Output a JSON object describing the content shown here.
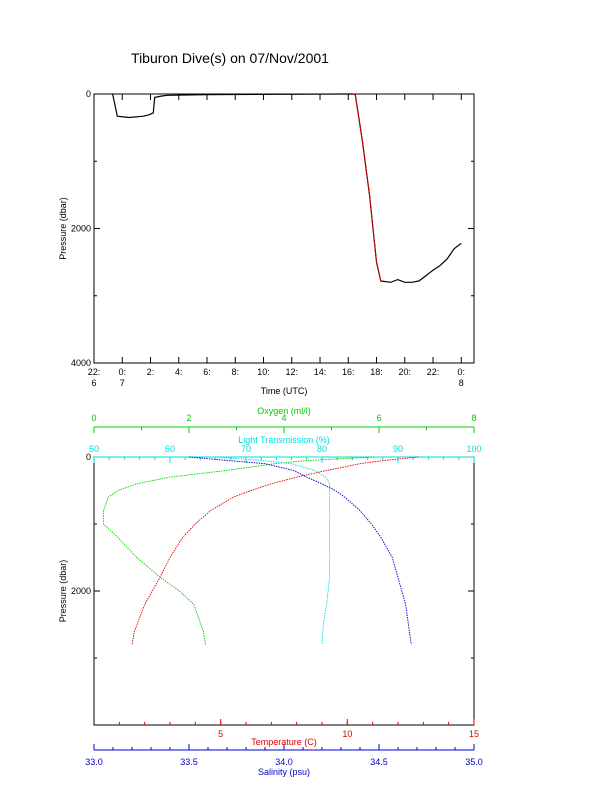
{
  "title": "Tiburon Dive(s) on 07/Nov/2001",
  "colors": {
    "axis": "#000000",
    "temperature": "#dd0000",
    "oxygen": "#00cc00",
    "transmission": "#00dddd",
    "salinity": "#0000cc",
    "dive_track": "#000000",
    "dive_track_highlight": "#cc0000"
  },
  "chart_data": [
    {
      "type": "line",
      "name": "dive-depth-time",
      "xlabel": "Time (UTC)",
      "ylabel": "Pressure (dbar)",
      "xlim": [
        22,
        48.9
      ],
      "ylim": [
        4000,
        0
      ],
      "x_ticks": [
        {
          "x": 22,
          "label": "22:",
          "sub": "6"
        },
        {
          "x": 24,
          "label": "0:",
          "sub": "7"
        },
        {
          "x": 26,
          "label": "2:",
          "sub": ""
        },
        {
          "x": 28,
          "label": "4:",
          "sub": ""
        },
        {
          "x": 30,
          "label": "6:",
          "sub": ""
        },
        {
          "x": 32,
          "label": "8:",
          "sub": ""
        },
        {
          "x": 34,
          "label": "10:",
          "sub": ""
        },
        {
          "x": 36,
          "label": "12:",
          "sub": ""
        },
        {
          "x": 38,
          "label": "14:",
          "sub": ""
        },
        {
          "x": 40,
          "label": "16:",
          "sub": ""
        },
        {
          "x": 42,
          "label": "18:",
          "sub": ""
        },
        {
          "x": 44,
          "label": "20:",
          "sub": ""
        },
        {
          "x": 46,
          "label": "22:",
          "sub": ""
        },
        {
          "x": 48,
          "label": "0:",
          "sub": "8"
        }
      ],
      "y_ticks": [
        0,
        2000,
        4000
      ],
      "x": [
        23.3,
        23.32,
        23.6,
        23.65,
        24.5,
        25.5,
        25.9,
        26.2,
        26.3,
        26.8,
        27.2,
        30,
        35,
        40,
        40.3,
        40.5,
        41,
        41.5,
        41.8,
        42,
        42.3,
        43,
        43.5,
        44,
        44.5,
        45,
        45.5,
        46,
        46.5,
        47,
        47.5,
        48
      ],
      "y": [
        0,
        0,
        280,
        330,
        350,
        330,
        310,
        280,
        50,
        30,
        20,
        10,
        5,
        0,
        0,
        10,
        700,
        1500,
        2100,
        2500,
        2780,
        2800,
        2760,
        2800,
        2800,
        2780,
        2700,
        2620,
        2550,
        2450,
        2300,
        2220
      ]
    },
    {
      "type": "line",
      "name": "vertical-profiles",
      "ylabel": "Pressure (dbar)",
      "ylim": [
        4000,
        0
      ],
      "y_ticks": [
        0,
        2000
      ],
      "axes": {
        "oxygen": {
          "label": "Oxygen (ml/l)",
          "range": [
            0,
            8
          ],
          "ticks": [
            0,
            2,
            4,
            6,
            8
          ]
        },
        "transmission": {
          "label": "Light Transmission (%)",
          "range": [
            50,
            100
          ],
          "ticks": [
            50,
            60,
            70,
            80,
            90,
            100
          ]
        },
        "temperature": {
          "label": "Temperature (C)",
          "range": [
            0,
            15
          ],
          "ticks": [
            5,
            10,
            15
          ]
        },
        "salinity": {
          "label": "Salinity (psu)",
          "range": [
            33,
            35
          ],
          "ticks": [
            "33.0",
            "33.5",
            "34.0",
            "34.5",
            "35.0"
          ]
        }
      },
      "pressure": [
        0,
        50,
        100,
        200,
        300,
        400,
        500,
        600,
        800,
        1000,
        1200,
        1500,
        1800,
        2000,
        2200,
        2400,
        2600,
        2800
      ],
      "series": [
        {
          "name": "Temperature (C)",
          "values": [
            12.8,
            11.5,
            10.5,
            9.2,
            8.0,
            7.0,
            6.2,
            5.5,
            4.6,
            4.0,
            3.5,
            3.0,
            2.6,
            2.3,
            2.0,
            1.8,
            1.6,
            1.5
          ]
        },
        {
          "name": "Oxygen (ml/l)",
          "values": [
            5.9,
            4.5,
            3.8,
            2.8,
            1.6,
            0.9,
            0.5,
            0.3,
            0.2,
            0.2,
            0.5,
            0.9,
            1.4,
            1.8,
            2.1,
            2.2,
            2.3,
            2.35
          ]
        },
        {
          "name": "Light Transmission (%)",
          "values": [
            66,
            72,
            76,
            79,
            80.5,
            81,
            81,
            81,
            81,
            81,
            81,
            81,
            81,
            80.8,
            80.6,
            80.3,
            80.1,
            80
          ]
        },
        {
          "name": "Salinity (psu)",
          "values": [
            33.5,
            33.7,
            33.9,
            34.05,
            34.12,
            34.2,
            34.27,
            34.32,
            34.4,
            34.46,
            34.51,
            34.57,
            34.6,
            34.62,
            34.64,
            34.65,
            34.66,
            34.67
          ]
        }
      ]
    }
  ]
}
